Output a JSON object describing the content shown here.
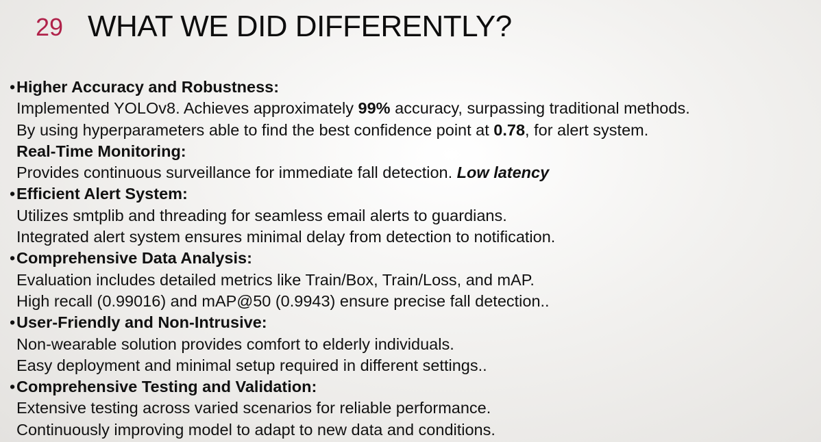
{
  "slide": {
    "number": "29",
    "title": "WHAT WE DID DIFFERENTLY?"
  },
  "bullet_char": "•",
  "sections": {
    "accuracy": {
      "heading": "Higher Accuracy and Robustness:",
      "line1_a": "Implemented YOLOv8. Achieves approximately ",
      "line1_bold": "99%",
      "line1_b": " accuracy, surpassing traditional methods.",
      "line2_a": "By using hyperparameters able to find the best confidence point at ",
      "line2_bold": "0.78",
      "line2_b": ", for alert system."
    },
    "realtime": {
      "heading": "Real-Time Monitoring:",
      "line1_a": "Provides continuous surveillance for immediate fall detection. ",
      "line1_bolditalic": "Low latency"
    },
    "alert": {
      "heading": "Efficient Alert System:",
      "line1": "Utilizes smtplib and threading for seamless email alerts to guardians.",
      "line2": "Integrated alert system ensures minimal delay from detection to notification."
    },
    "analysis": {
      "heading": "Comprehensive Data Analysis:",
      "line1": "Evaluation includes detailed metrics like Train/Box, Train/Loss, and mAP.",
      "line2": "High recall (0.99016) and mAP@50 (0.9943) ensure precise fall detection.."
    },
    "userfriendly": {
      "heading": "User-Friendly and Non-Intrusive:",
      "line1": "Non-wearable solution provides comfort to elderly individuals.",
      "line2": "Easy deployment and minimal setup required in different settings.."
    },
    "testing": {
      "heading": "Comprehensive Testing and Validation:",
      "line1": "Extensive testing across varied scenarios for reliable performance.",
      "line2": "Continuously improving model to adapt to new data and conditions."
    }
  },
  "colors": {
    "slide_number": "#b0224a",
    "title": "#0d0d0d",
    "body_text": "#111111"
  }
}
